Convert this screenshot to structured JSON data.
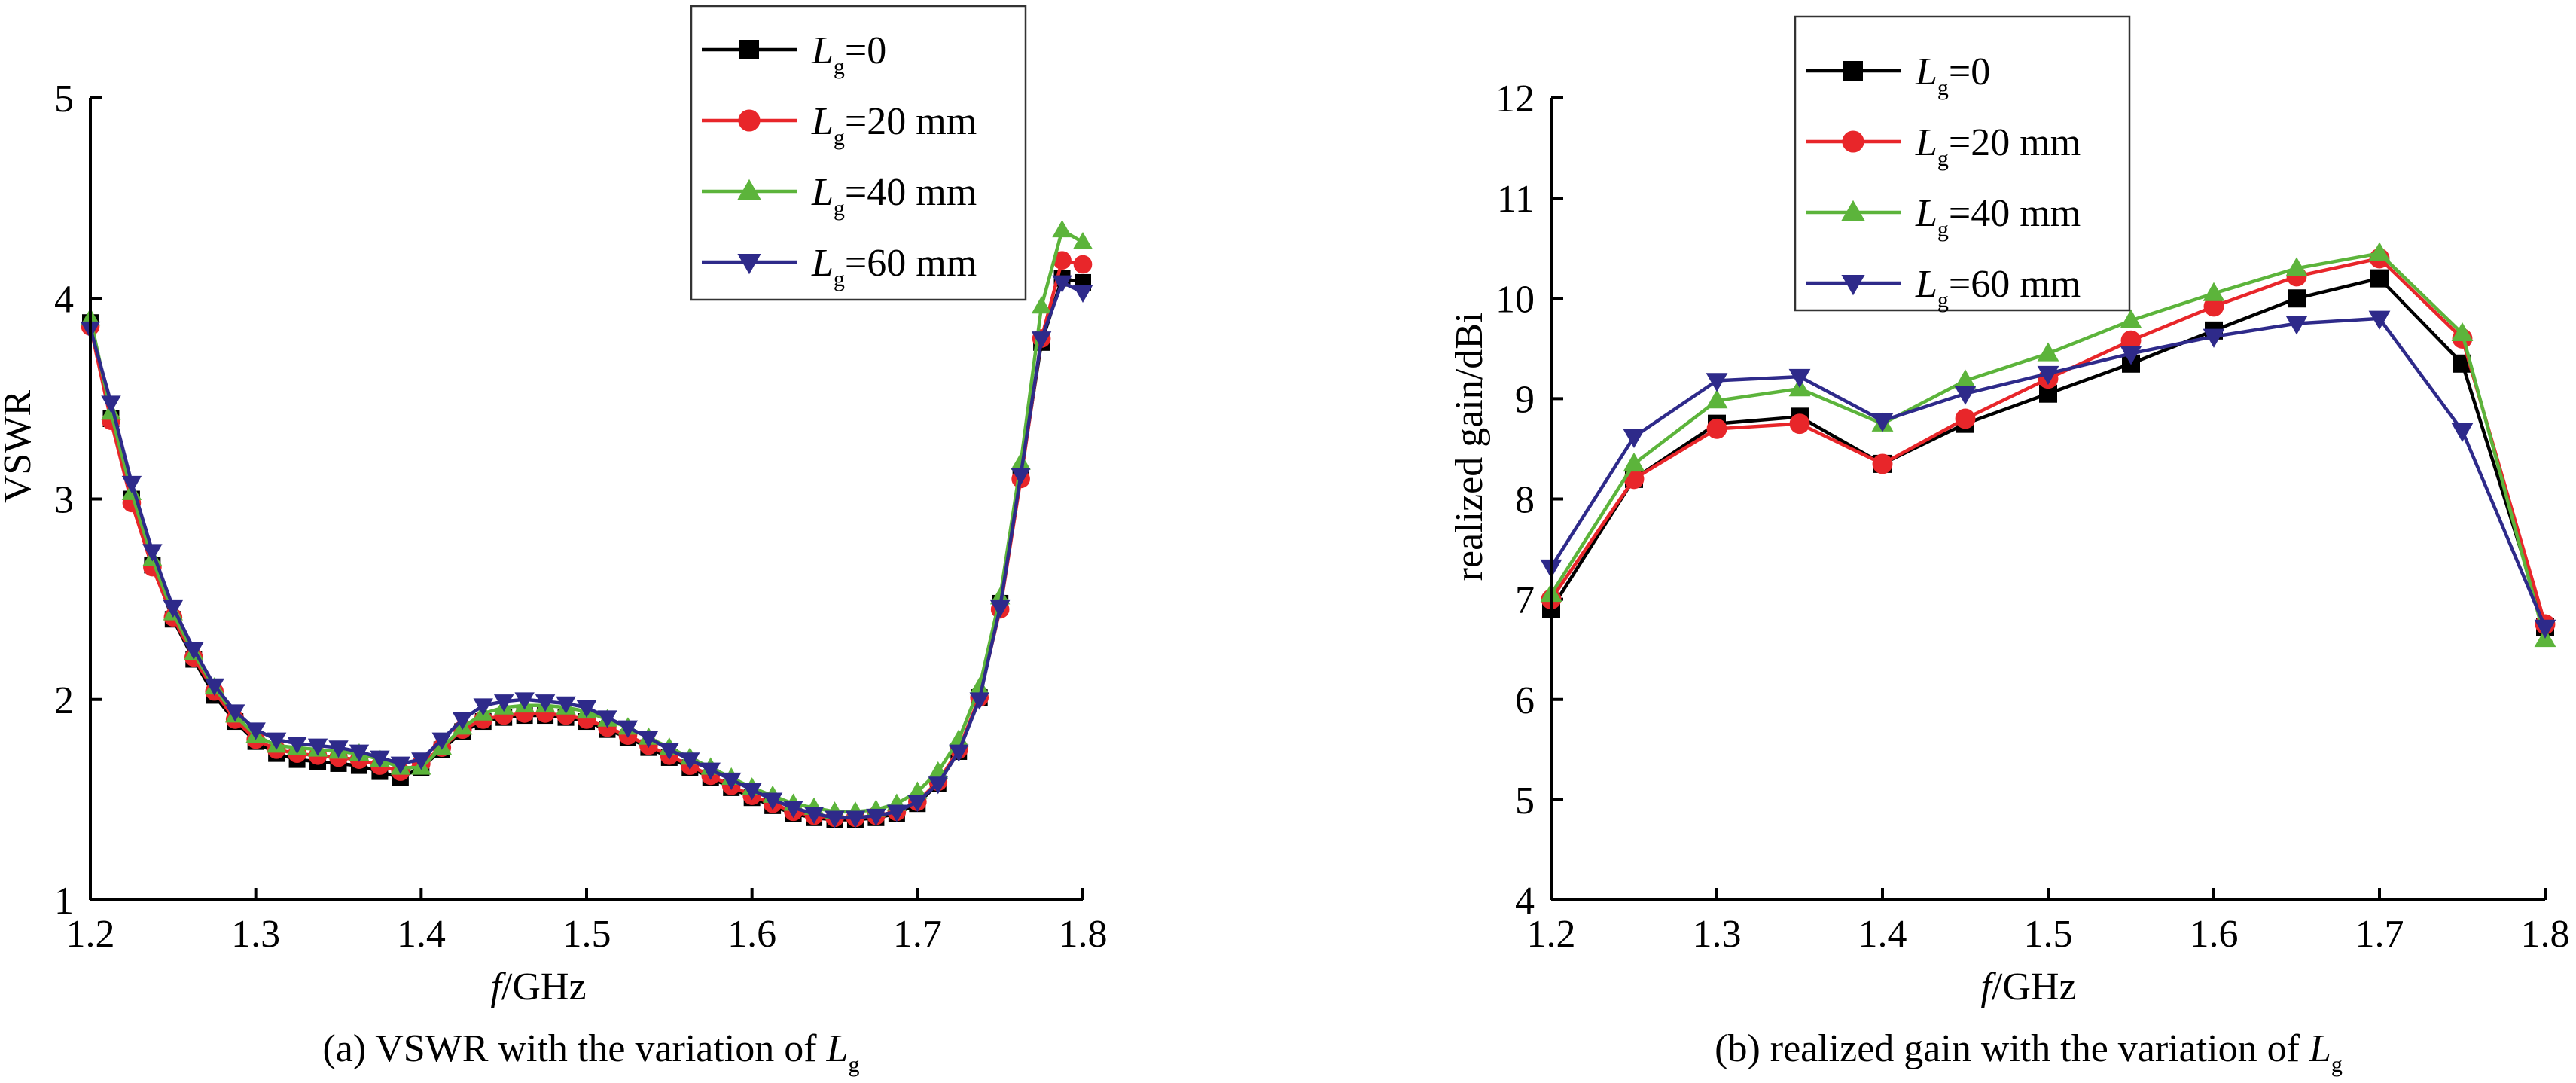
{
  "colors": {
    "Lg_0": "#000000",
    "Lg_20": "#e8262a",
    "Lg_40": "#5cb43b",
    "Lg_60": "#2e2a8a"
  },
  "chart_data": [
    {
      "type": "line",
      "caption_prefix": "(a) VSWR with the variation of ",
      "caption_sym": "L",
      "caption_sub": "g",
      "xlabel_it": "f",
      "xlabel_rest": "/GHz",
      "ylabel": "VSWR",
      "xlim": [
        1.2,
        1.8
      ],
      "ylim": [
        1,
        5
      ],
      "xticks": [
        1.2,
        1.3,
        1.4,
        1.5,
        1.6,
        1.7,
        1.8
      ],
      "xtick_labels": [
        "1.2",
        "1.3",
        "1.4",
        "1.5",
        "1.6",
        "1.7",
        "1.8"
      ],
      "yticks": [
        1,
        2,
        3,
        4,
        5
      ],
      "ytick_labels": [
        "1",
        "2",
        "3",
        "4",
        "5"
      ],
      "legend_position": "top-right",
      "x": [
        1.2,
        1.2125,
        1.225,
        1.2375,
        1.25,
        1.2625,
        1.275,
        1.2875,
        1.3,
        1.3125,
        1.325,
        1.3375,
        1.35,
        1.3625,
        1.375,
        1.3875,
        1.4,
        1.4125,
        1.425,
        1.4375,
        1.45,
        1.4625,
        1.475,
        1.4875,
        1.5,
        1.5125,
        1.525,
        1.5375,
        1.55,
        1.5625,
        1.575,
        1.5875,
        1.6,
        1.6125,
        1.625,
        1.6375,
        1.65,
        1.6625,
        1.675,
        1.6875,
        1.7,
        1.7125,
        1.725,
        1.7375,
        1.75,
        1.7625,
        1.775,
        1.7875,
        1.8
      ],
      "series": [
        {
          "name_sym": "L",
          "name_sub": "g",
          "name_rest": "=0",
          "color_key": "Lg_0",
          "marker": "square",
          "values": [
            3.88,
            3.4,
            3.0,
            2.67,
            2.4,
            2.2,
            2.02,
            1.89,
            1.79,
            1.73,
            1.7,
            1.69,
            1.68,
            1.67,
            1.64,
            1.61,
            1.66,
            1.75,
            1.84,
            1.89,
            1.91,
            1.92,
            1.92,
            1.91,
            1.89,
            1.85,
            1.81,
            1.76,
            1.71,
            1.66,
            1.61,
            1.56,
            1.51,
            1.47,
            1.43,
            1.41,
            1.4,
            1.4,
            1.41,
            1.43,
            1.48,
            1.58,
            1.74,
            2.01,
            2.48,
            3.12,
            3.78,
            4.1,
            4.08
          ]
        },
        {
          "name_sym": "L",
          "name_sub": "g",
          "name_rest": "=20 mm",
          "color_key": "Lg_20",
          "marker": "circle",
          "values": [
            3.86,
            3.39,
            2.98,
            2.66,
            2.41,
            2.21,
            2.04,
            1.9,
            1.8,
            1.75,
            1.73,
            1.72,
            1.71,
            1.7,
            1.67,
            1.64,
            1.68,
            1.76,
            1.85,
            1.9,
            1.92,
            1.93,
            1.93,
            1.92,
            1.9,
            1.86,
            1.82,
            1.77,
            1.72,
            1.67,
            1.62,
            1.57,
            1.52,
            1.48,
            1.44,
            1.42,
            1.41,
            1.41,
            1.42,
            1.44,
            1.49,
            1.59,
            1.75,
            2.01,
            2.45,
            3.1,
            3.8,
            4.19,
            4.17
          ]
        },
        {
          "name_sym": "L",
          "name_sub": "g",
          "name_rest": "=40 mm",
          "color_key": "Lg_40",
          "marker": "triangle-up",
          "values": [
            3.9,
            3.43,
            3.03,
            2.7,
            2.43,
            2.23,
            2.06,
            1.92,
            1.82,
            1.77,
            1.76,
            1.75,
            1.74,
            1.73,
            1.7,
            1.66,
            1.66,
            1.76,
            1.86,
            1.93,
            1.96,
            1.97,
            1.97,
            1.96,
            1.94,
            1.9,
            1.86,
            1.81,
            1.76,
            1.71,
            1.66,
            1.61,
            1.56,
            1.52,
            1.48,
            1.46,
            1.44,
            1.44,
            1.45,
            1.48,
            1.54,
            1.64,
            1.8,
            2.06,
            2.51,
            3.18,
            3.96,
            4.34,
            4.28
          ]
        },
        {
          "name_sym": "L",
          "name_sub": "g",
          "name_rest": "=60 mm",
          "color_key": "Lg_60",
          "marker": "triangle-down",
          "values": [
            3.85,
            3.48,
            3.08,
            2.74,
            2.46,
            2.25,
            2.07,
            1.94,
            1.85,
            1.8,
            1.78,
            1.77,
            1.76,
            1.74,
            1.71,
            1.68,
            1.7,
            1.8,
            1.9,
            1.97,
            1.99,
            2.0,
            1.99,
            1.98,
            1.96,
            1.91,
            1.86,
            1.81,
            1.75,
            1.7,
            1.65,
            1.6,
            1.55,
            1.5,
            1.46,
            1.43,
            1.41,
            1.41,
            1.42,
            1.44,
            1.49,
            1.58,
            1.74,
            2.0,
            2.46,
            3.12,
            3.8,
            4.08,
            4.03
          ]
        }
      ]
    },
    {
      "type": "line",
      "caption_prefix": "(b) realized gain with the variation of ",
      "caption_sym": "L",
      "caption_sub": "g",
      "xlabel_it": "f",
      "xlabel_rest": "/GHz",
      "ylabel": "realized gain/dBi",
      "xlim": [
        1.2,
        1.8
      ],
      "ylim": [
        4,
        12
      ],
      "xticks": [
        1.2,
        1.3,
        1.4,
        1.5,
        1.6,
        1.7,
        1.8
      ],
      "xtick_labels": [
        "1.2",
        "1.3",
        "1.4",
        "1.5",
        "1.6",
        "1.7",
        "1.8"
      ],
      "yticks": [
        4,
        5,
        6,
        7,
        8,
        9,
        10,
        11,
        12
      ],
      "ytick_labels": [
        "4",
        "5",
        "6",
        "7",
        "8",
        "9",
        "10",
        "11",
        "12"
      ],
      "legend_position": "top-left",
      "x": [
        1.2,
        1.25,
        1.3,
        1.35,
        1.4,
        1.45,
        1.5,
        1.55,
        1.6,
        1.65,
        1.7,
        1.75,
        1.8
      ],
      "series": [
        {
          "name_sym": "L",
          "name_sub": "g",
          "name_rest": "=0",
          "color_key": "Lg_0",
          "marker": "square",
          "values": [
            6.9,
            8.2,
            8.75,
            8.82,
            8.35,
            8.75,
            9.05,
            9.35,
            9.68,
            10.0,
            10.2,
            9.35,
            6.72
          ]
        },
        {
          "name_sym": "L",
          "name_sub": "g",
          "name_rest": "=20 mm",
          "color_key": "Lg_20",
          "marker": "circle",
          "values": [
            7.0,
            8.2,
            8.7,
            8.75,
            8.35,
            8.8,
            9.2,
            9.58,
            9.92,
            10.22,
            10.4,
            9.6,
            6.75
          ]
        },
        {
          "name_sym": "L",
          "name_sub": "g",
          "name_rest": "=40 mm",
          "color_key": "Lg_40",
          "marker": "triangle-up",
          "values": [
            7.05,
            8.35,
            8.98,
            9.1,
            8.75,
            9.18,
            9.45,
            9.78,
            10.05,
            10.3,
            10.45,
            9.65,
            6.6
          ]
        },
        {
          "name_sym": "L",
          "name_sub": "g",
          "name_rest": "=60 mm",
          "color_key": "Lg_60",
          "marker": "triangle-down",
          "values": [
            7.32,
            8.62,
            9.18,
            9.22,
            8.78,
            9.05,
            9.25,
            9.45,
            9.62,
            9.75,
            9.8,
            8.68,
            6.72
          ]
        }
      ]
    }
  ]
}
